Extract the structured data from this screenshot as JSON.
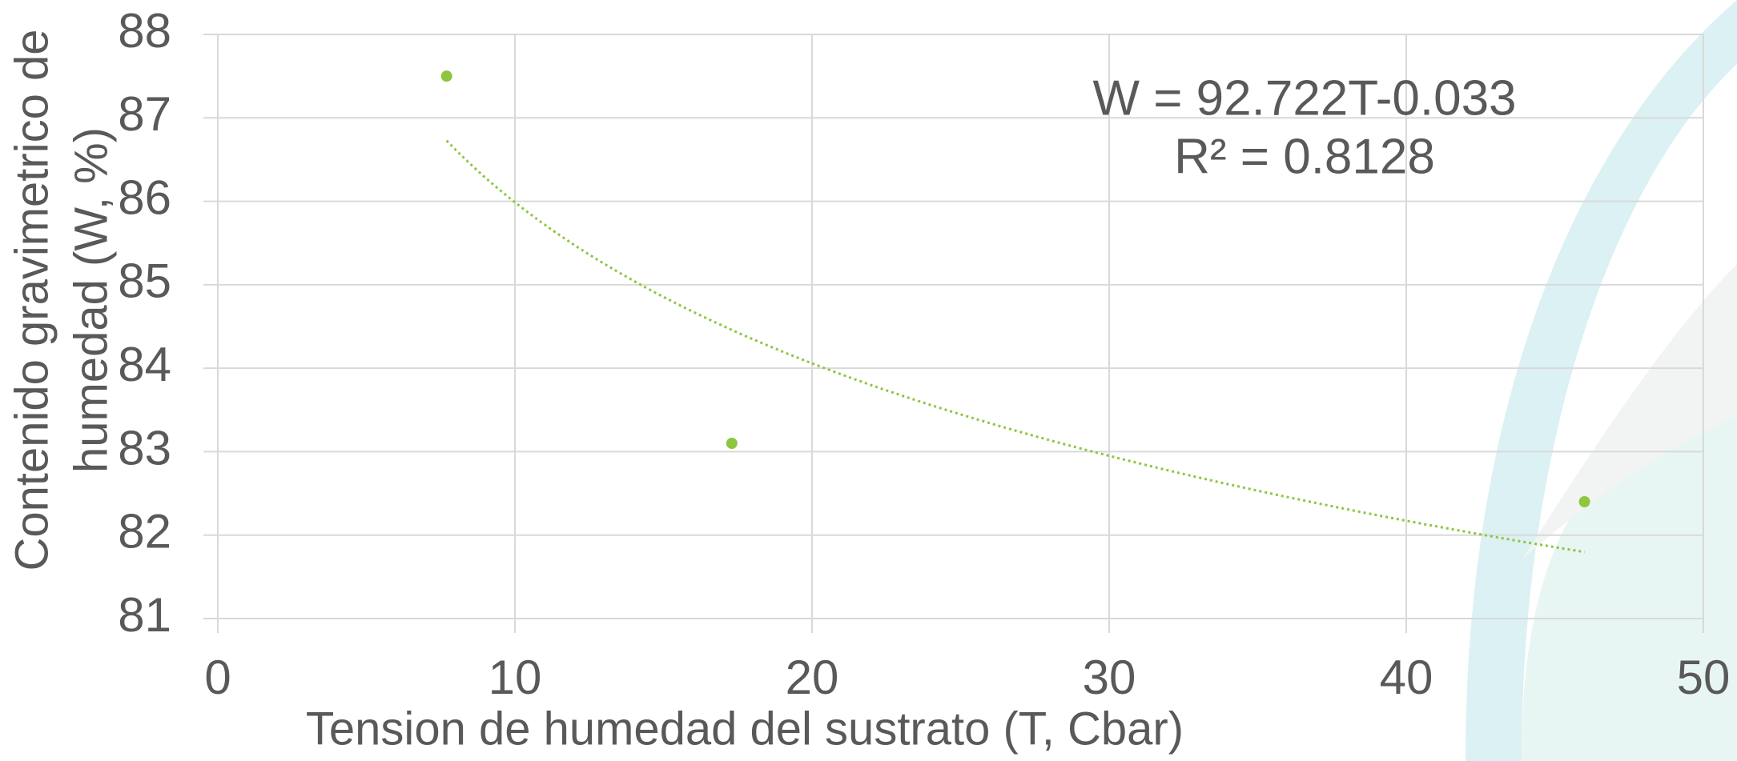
{
  "chart_data": {
    "type": "scatter",
    "x_label": "Tension de humedad del sustrato (T, Cbar)",
    "y_label": [
      "Contenido gravimetrico de",
      "humedad (W, %)"
    ],
    "x": [
      7.7,
      17.3,
      46
    ],
    "values": [
      87.5,
      83.1,
      82.4
    ],
    "color": "#8dc63f",
    "trendline": {
      "type": "power",
      "color": "#8dc63f",
      "equation": "W = 92.722T-0.033",
      "r2": "R² = 0.8128"
    },
    "xlim": [
      0,
      50
    ],
    "xticks": [
      0,
      10,
      20,
      30,
      40,
      50
    ],
    "ylim": [
      81,
      88
    ],
    "yticks": [
      81,
      82,
      83,
      84,
      85,
      86,
      87,
      88
    ],
    "grid": true
  }
}
